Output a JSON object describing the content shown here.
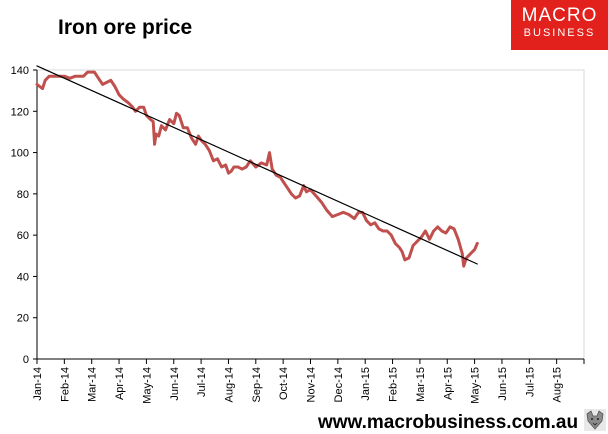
{
  "brand": {
    "line1": "MACRO",
    "line2": "BUSINESS",
    "footer_url": "www.macrobusiness.com.au",
    "accent": "#e2201c"
  },
  "chart_data": {
    "type": "line",
    "title": "Iron ore price",
    "xlabel": "",
    "ylabel": "",
    "ylim": [
      0,
      140
    ],
    "yticks": [
      0,
      20,
      40,
      60,
      80,
      100,
      120,
      140
    ],
    "categories": [
      "Jan-14",
      "Feb-14",
      "Mar-14",
      "Apr-14",
      "May-14",
      "Jun-14",
      "Jul-14",
      "Aug-14",
      "Sep-14",
      "Oct-14",
      "Nov-14",
      "Dec-14",
      "Jan-15",
      "Feb-15",
      "Mar-15",
      "Apr-15",
      "May-15",
      "Jun-15",
      "Jul-15",
      "Aug-15"
    ],
    "series": [
      {
        "name": "Iron ore price",
        "color": "#c0504d",
        "values": [
          [
            0.0,
            133
          ],
          [
            0.1,
            132
          ],
          [
            0.2,
            131
          ],
          [
            0.3,
            135
          ],
          [
            0.45,
            137
          ],
          [
            0.7,
            137
          ],
          [
            1.0,
            137
          ],
          [
            1.2,
            136
          ],
          [
            1.4,
            137
          ],
          [
            1.7,
            137
          ],
          [
            1.85,
            139
          ],
          [
            2.1,
            139
          ],
          [
            2.25,
            136
          ],
          [
            2.4,
            133
          ],
          [
            2.55,
            134
          ],
          [
            2.7,
            135
          ],
          [
            2.85,
            132
          ],
          [
            3.0,
            128
          ],
          [
            3.15,
            126
          ],
          [
            3.35,
            124
          ],
          [
            3.5,
            122
          ],
          [
            3.6,
            120
          ],
          [
            3.75,
            122
          ],
          [
            3.9,
            122
          ],
          [
            4.0,
            118
          ],
          [
            4.15,
            116
          ],
          [
            4.25,
            115
          ],
          [
            4.3,
            104
          ],
          [
            4.35,
            109
          ],
          [
            4.45,
            108
          ],
          [
            4.55,
            113
          ],
          [
            4.7,
            111
          ],
          [
            4.85,
            116
          ],
          [
            5.0,
            114
          ],
          [
            5.1,
            119
          ],
          [
            5.2,
            118
          ],
          [
            5.35,
            112
          ],
          [
            5.5,
            112
          ],
          [
            5.65,
            107
          ],
          [
            5.8,
            104
          ],
          [
            5.9,
            108
          ],
          [
            6.0,
            106
          ],
          [
            6.15,
            104
          ],
          [
            6.3,
            101
          ],
          [
            6.45,
            96
          ],
          [
            6.6,
            97
          ],
          [
            6.75,
            93
          ],
          [
            6.9,
            94
          ],
          [
            7.0,
            90
          ],
          [
            7.1,
            91
          ],
          [
            7.2,
            93
          ],
          [
            7.35,
            93
          ],
          [
            7.5,
            92
          ],
          [
            7.65,
            93
          ],
          [
            7.8,
            96
          ],
          [
            8.0,
            93
          ],
          [
            8.2,
            95
          ],
          [
            8.4,
            94
          ],
          [
            8.5,
            100
          ],
          [
            8.6,
            92
          ],
          [
            8.75,
            89
          ],
          [
            8.9,
            88
          ],
          [
            9.0,
            86
          ],
          [
            9.15,
            83
          ],
          [
            9.3,
            80
          ],
          [
            9.45,
            78
          ],
          [
            9.6,
            79
          ],
          [
            9.75,
            84
          ],
          [
            9.85,
            81
          ],
          [
            10.0,
            82
          ],
          [
            10.2,
            79
          ],
          [
            10.4,
            76
          ],
          [
            10.6,
            72
          ],
          [
            10.8,
            69
          ],
          [
            11.0,
            70
          ],
          [
            11.2,
            71
          ],
          [
            11.4,
            70
          ],
          [
            11.6,
            68
          ],
          [
            11.75,
            71
          ],
          [
            11.9,
            71
          ],
          [
            12.05,
            67
          ],
          [
            12.2,
            65
          ],
          [
            12.35,
            66
          ],
          [
            12.5,
            63
          ],
          [
            12.65,
            62
          ],
          [
            12.8,
            62
          ],
          [
            12.95,
            60
          ],
          [
            13.1,
            56
          ],
          [
            13.25,
            54
          ],
          [
            13.35,
            52
          ],
          [
            13.45,
            48
          ],
          [
            13.6,
            49
          ],
          [
            13.75,
            55
          ],
          [
            13.9,
            57
          ],
          [
            14.05,
            59
          ],
          [
            14.2,
            62
          ],
          [
            14.35,
            58
          ],
          [
            14.5,
            62
          ],
          [
            14.65,
            64
          ],
          [
            14.8,
            62
          ],
          [
            14.95,
            61
          ],
          [
            15.1,
            64
          ],
          [
            15.25,
            63
          ],
          [
            15.4,
            58
          ],
          [
            15.55,
            51
          ],
          [
            15.6,
            45
          ],
          [
            15.7,
            49
          ],
          [
            15.85,
            51
          ],
          [
            16.0,
            53
          ],
          [
            16.1,
            56
          ]
        ]
      },
      {
        "name": "Trend",
        "color": "#000000",
        "values": [
          [
            0.0,
            142
          ],
          [
            16.1,
            46
          ]
        ]
      }
    ]
  }
}
